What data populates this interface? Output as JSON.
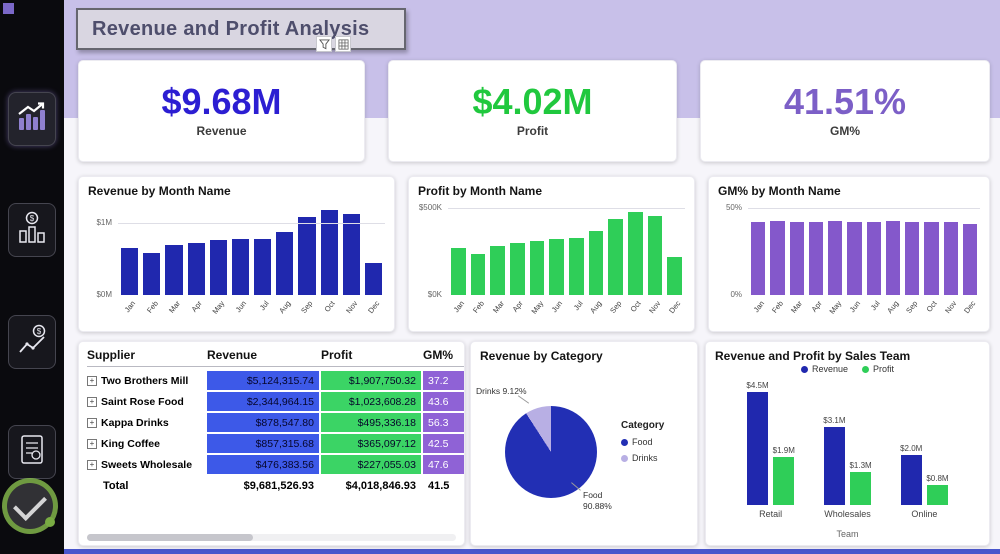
{
  "header": {
    "title": "Revenue and Profit Analysis"
  },
  "colors": {
    "header_band": "#C8C0E9",
    "canvas": "#F6F5FA",
    "bottom_strip": "#4A57CC",
    "kpi_revenue": "#2C1ED2",
    "kpi_profit": "#20C83E",
    "kpi_gm": "#7C5FC7",
    "bar_blue": "#2028AE",
    "bar_green": "#2FCE58",
    "bar_purple": "#8458CB",
    "pie_food": "#222FB4",
    "pie_drinks": "#B8AFE4",
    "cell_blue": "#3D59E8",
    "cell_green": "#3BD465",
    "cell_purple": "#8F62D6"
  },
  "sidebar": {
    "nav_items": [
      "trend-bar-chart",
      "column-chart-dollar",
      "line-chart-dollar",
      "report-document"
    ]
  },
  "toolbar": {
    "icons": [
      "filter-icon",
      "grid-icon"
    ]
  },
  "kpis": [
    {
      "value": "$9.68M",
      "label": "Revenue"
    },
    {
      "value": "$4.02M",
      "label": "Profit"
    },
    {
      "value": "41.51%",
      "label": "GM%"
    }
  ],
  "chart_data": [
    {
      "type": "bar",
      "title": "Revenue by Month Name",
      "categories": [
        "Jan",
        "Feb",
        "Mar",
        "Apr",
        "May",
        "Jun",
        "Jul",
        "Aug",
        "Sep",
        "Oct",
        "Nov",
        "Dec"
      ],
      "values": [
        0.65,
        0.58,
        0.7,
        0.72,
        0.76,
        0.78,
        0.78,
        0.88,
        1.08,
        1.18,
        1.12,
        0.45
      ],
      "unit": "$M",
      "ylim": [
        0,
        1.25
      ],
      "axis": {
        "tick_value": 1.0,
        "tick_label": "$1M",
        "zero_label": "$0M"
      },
      "color_key": "bar_blue"
    },
    {
      "type": "bar",
      "title": "Profit by Month Name",
      "categories": [
        "Jan",
        "Feb",
        "Mar",
        "Apr",
        "May",
        "Jun",
        "Jul",
        "Aug",
        "Sep",
        "Oct",
        "Nov",
        "Dec"
      ],
      "values": [
        270,
        235,
        285,
        300,
        310,
        325,
        330,
        370,
        440,
        480,
        455,
        220
      ],
      "unit": "$K",
      "ylim": [
        0,
        520
      ],
      "axis": {
        "tick_value": 500,
        "tick_label": "$500K",
        "zero_label": "$0K"
      },
      "color_key": "bar_green"
    },
    {
      "type": "bar",
      "title": "GM% by Month Name",
      "categories": [
        "Jan",
        "Feb",
        "Mar",
        "Apr",
        "May",
        "Jun",
        "Jul",
        "Aug",
        "Sep",
        "Oct",
        "Nov",
        "Dec"
      ],
      "values": [
        42,
        43,
        42,
        42,
        43,
        42,
        42,
        43,
        42,
        42,
        42,
        41
      ],
      "unit": "%",
      "ylim": [
        0,
        52
      ],
      "axis": {
        "tick_value": 50,
        "tick_label": "50%",
        "zero_label": "0%"
      },
      "color_key": "bar_purple"
    },
    {
      "type": "pie",
      "title": "Revenue by Category",
      "legend_title": "Category",
      "slices": [
        {
          "label": "Food",
          "value": 90.88,
          "color_key": "pie_food"
        },
        {
          "label": "Drinks",
          "value": 9.12,
          "color_key": "pie_drinks"
        }
      ],
      "callouts": {
        "drinks": "Drinks 9.12%",
        "food_name": "Food",
        "food_pct": "90.88%"
      }
    },
    {
      "type": "bar",
      "title": "Revenue and Profit by Sales Team",
      "categories": [
        "Retail",
        "Wholesales",
        "Online"
      ],
      "series": [
        {
          "name": "Revenue",
          "values": [
            4.5,
            3.1,
            2.0
          ],
          "labels": [
            "$4.5M",
            "$3.1M",
            "$2.0M"
          ],
          "color_key": "bar_blue"
        },
        {
          "name": "Profit",
          "values": [
            1.9,
            1.3,
            0.8
          ],
          "labels": [
            "$1.9M",
            "$1.3M",
            "$0.8M"
          ],
          "color_key": "bar_green"
        }
      ],
      "unit": "$M",
      "xlabel": "Team",
      "ylim": [
        0,
        5
      ]
    },
    {
      "type": "table",
      "columns": [
        "Supplier",
        "Revenue",
        "Profit",
        "GM%"
      ],
      "rows": [
        {
          "supplier": "Two Brothers Mill",
          "revenue": "$5,124,315.74",
          "profit": "$1,907,750.32",
          "gm": "37.2"
        },
        {
          "supplier": "Saint Rose Food",
          "revenue": "$2,344,964.15",
          "profit": "$1,023,608.28",
          "gm": "43.6"
        },
        {
          "supplier": "Kappa Drinks",
          "revenue": "$878,547.80",
          "profit": "$495,336.18",
          "gm": "56.3"
        },
        {
          "supplier": "King Coffee",
          "revenue": "$857,315.68",
          "profit": "$365,097.12",
          "gm": "42.5"
        },
        {
          "supplier": "Sweets Wholesale",
          "revenue": "$476,383.56",
          "profit": "$227,055.03",
          "gm": "47.6"
        }
      ],
      "total": {
        "label": "Total",
        "revenue": "$9,681,526.93",
        "profit": "$4,018,846.93",
        "gm": "41.5"
      }
    }
  ]
}
